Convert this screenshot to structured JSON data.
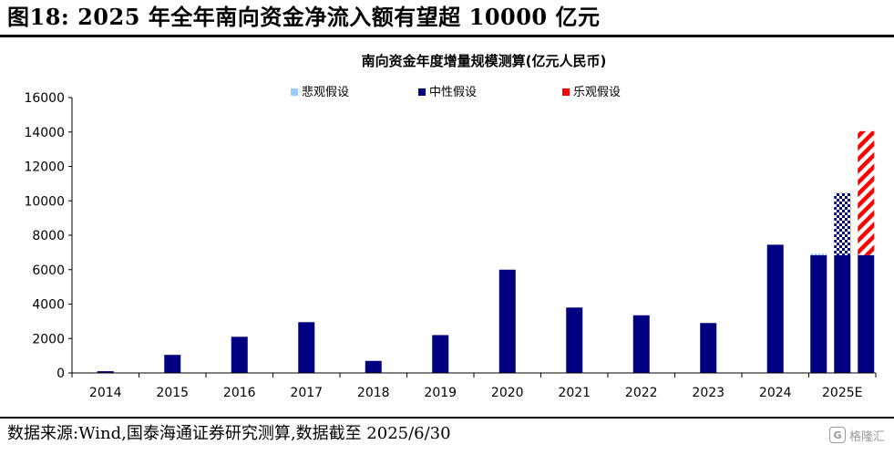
{
  "figure_title": "图18: 2025 年全年南向资金净流入额有望超 10000 亿元",
  "source_note": "数据来源:Wind,国泰海通证券研究测算,数据截至 2025/6/30",
  "watermark": {
    "text": "格隆汇",
    "icon": "logo-icon"
  },
  "colors": {
    "pessimistic": "#99ccff",
    "neutral": "#000080",
    "optimistic": "#ff0000"
  },
  "chart_data": {
    "type": "bar",
    "title": "南向资金年度增量规模测算(亿元人民币)",
    "xlabel": "",
    "ylabel": "",
    "ylim": [
      0,
      16000
    ],
    "yticks": [
      "0",
      "2000",
      "4000",
      "6000",
      "8000",
      "10000",
      "12000",
      "14000",
      "16000"
    ],
    "ytick_values": [
      0,
      2000,
      4000,
      6000,
      8000,
      10000,
      12000,
      14000,
      16000
    ],
    "legend": [
      "悲观假设",
      "中性假设",
      "乐观假设"
    ],
    "legend_position": "top",
    "categories": [
      "2014",
      "2015",
      "2016",
      "2017",
      "2018",
      "2019",
      "2020",
      "2021",
      "2022",
      "2023",
      "2024",
      "2025E"
    ],
    "historical": [
      {
        "year": "2014",
        "value": 100
      },
      {
        "year": "2015",
        "value": 1050
      },
      {
        "year": "2016",
        "value": 2100
      },
      {
        "year": "2017",
        "value": 2950
      },
      {
        "year": "2018",
        "value": 700
      },
      {
        "year": "2019",
        "value": 2200
      },
      {
        "year": "2020",
        "value": 6000
      },
      {
        "year": "2021",
        "value": 3800
      },
      {
        "year": "2022",
        "value": 3350
      },
      {
        "year": "2023",
        "value": 2900
      },
      {
        "year": "2024",
        "value": 7450
      }
    ],
    "estimate_2025E": [
      {
        "scenario": "悲观假设",
        "base": 6850,
        "increment": 100
      },
      {
        "scenario": "中性假设",
        "base": 6850,
        "increment": 3600
      },
      {
        "scenario": "乐观假设",
        "base": 6850,
        "increment": 7200
      }
    ]
  }
}
